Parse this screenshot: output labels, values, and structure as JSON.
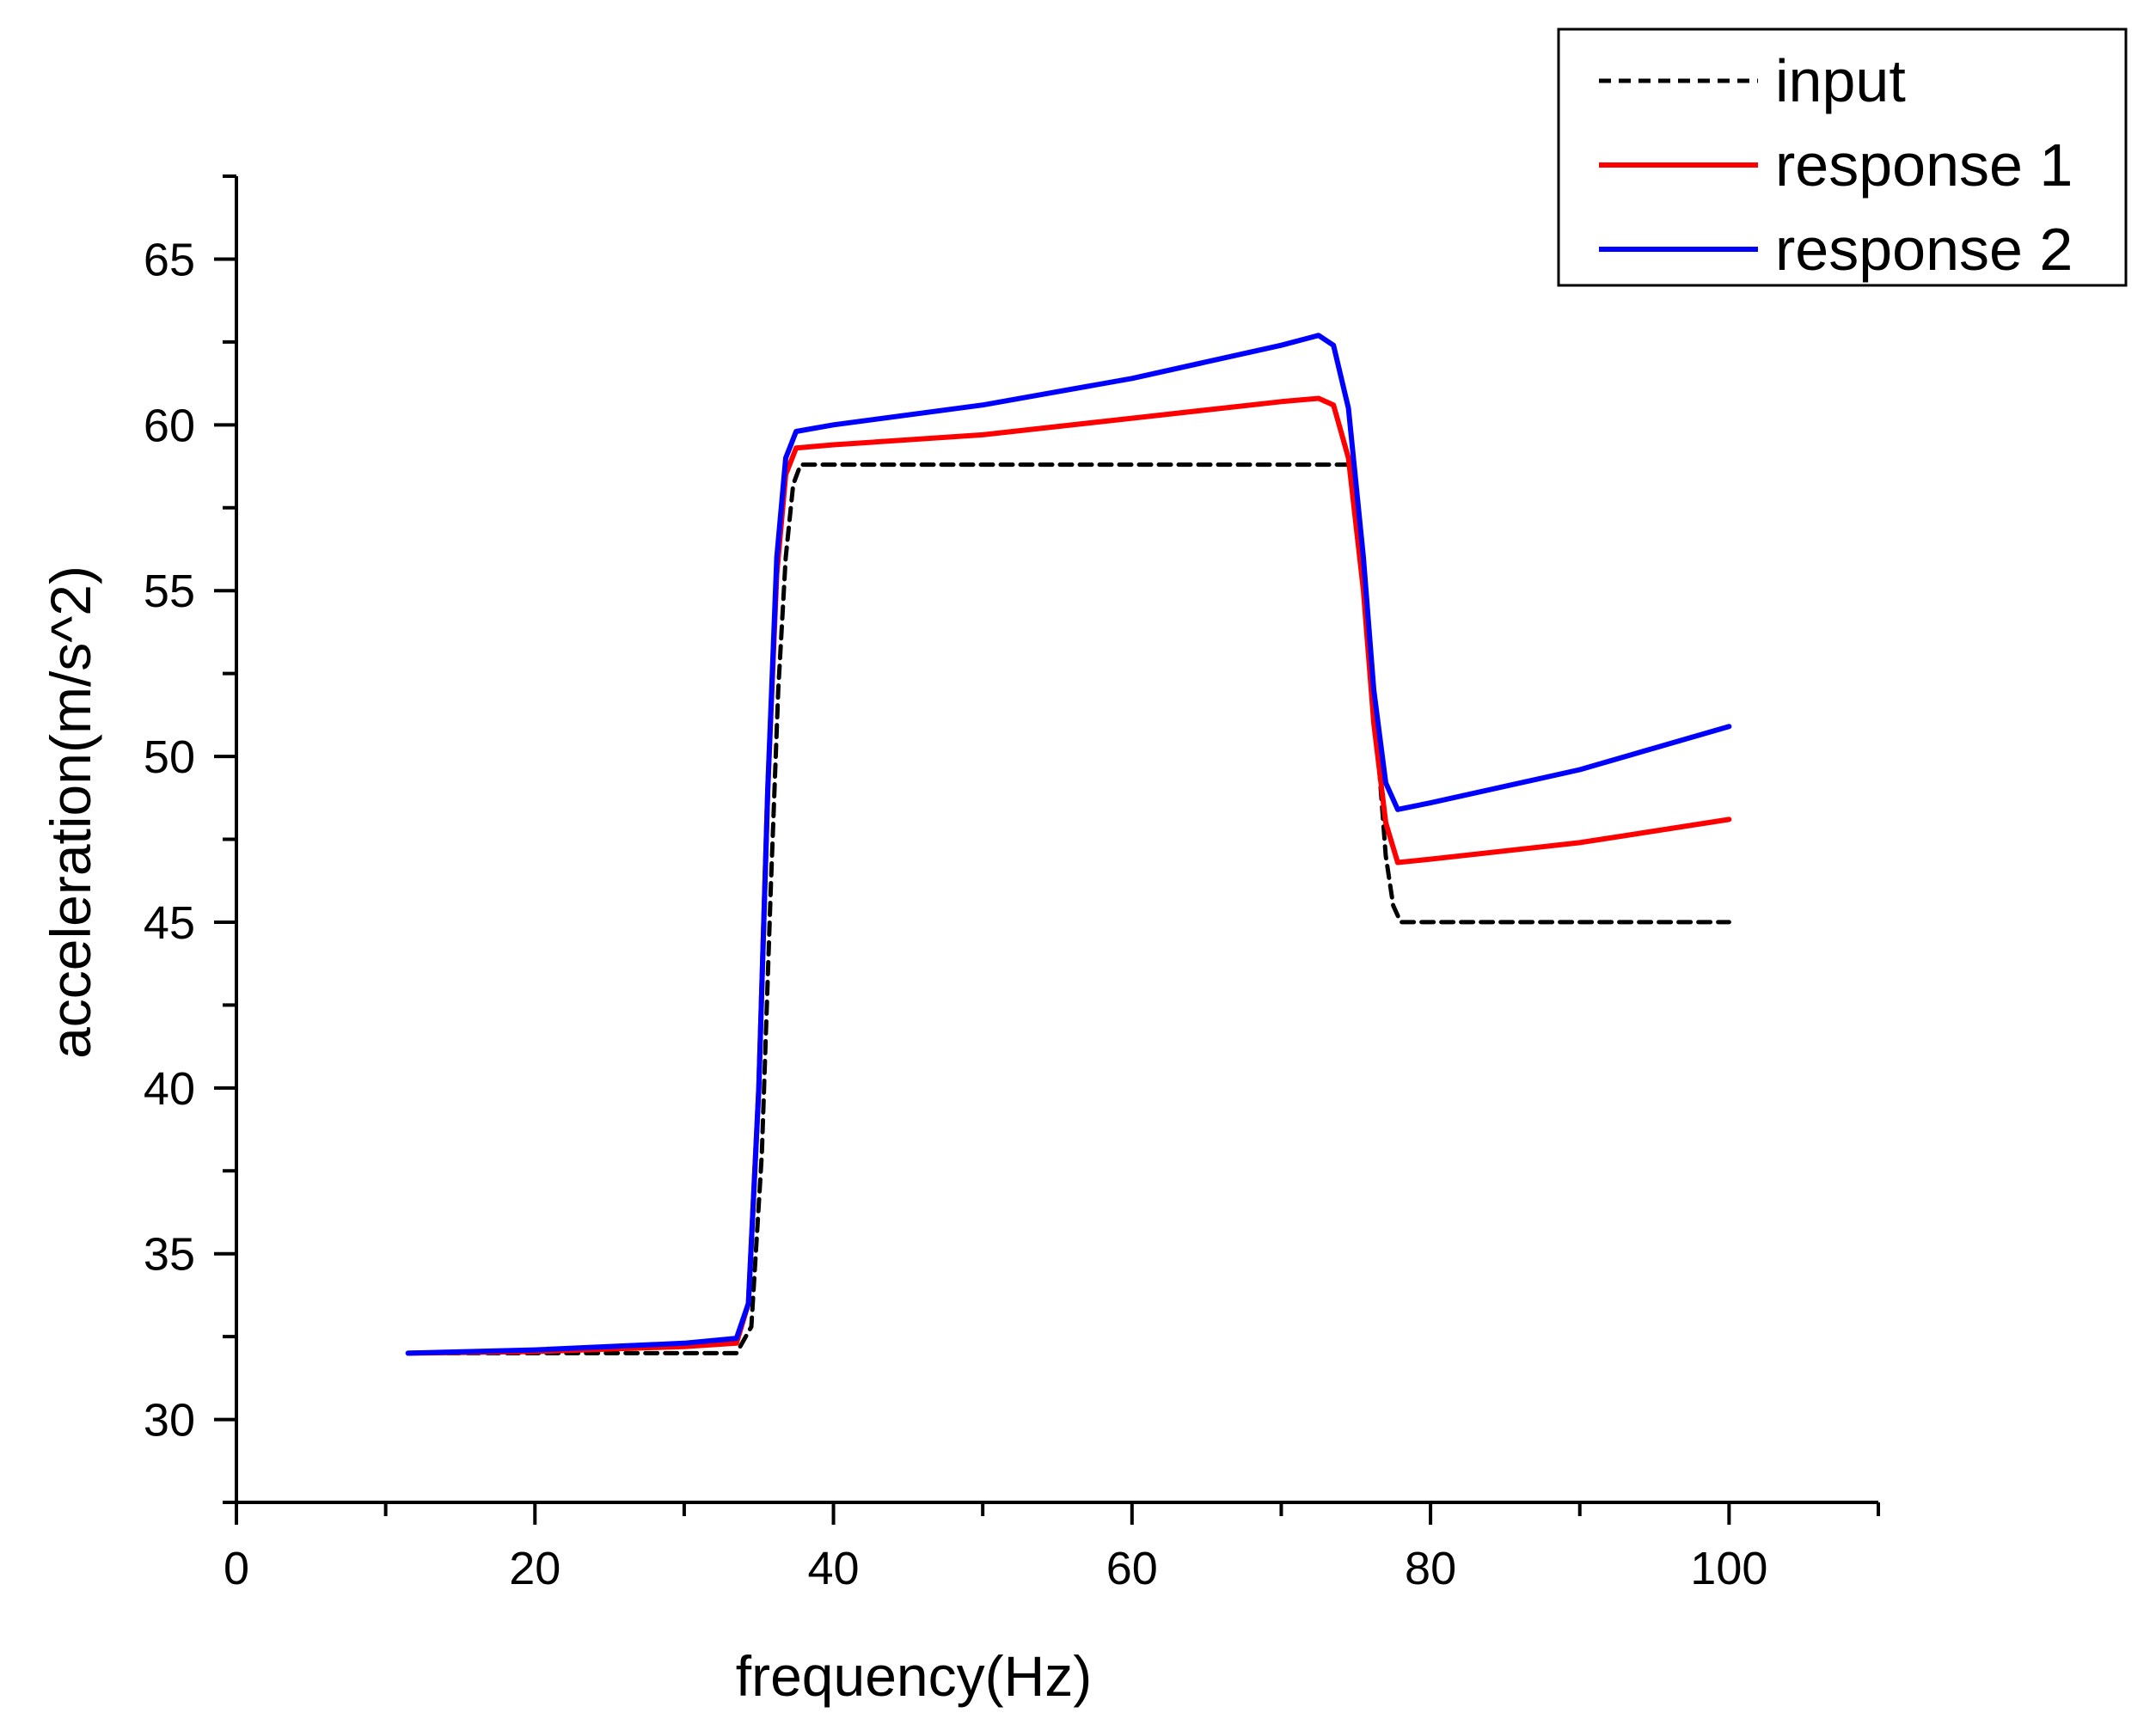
{
  "chart_data": {
    "type": "line",
    "title": "",
    "xlabel": "frequency(Hz)",
    "ylabel": "acceleration(m/s^2)",
    "xlim": [
      0,
      110
    ],
    "ylim": [
      27.5,
      67.5
    ],
    "xticks": [
      0,
      20,
      40,
      60,
      80,
      100
    ],
    "yticks": [
      30,
      35,
      40,
      45,
      50,
      55,
      60,
      65
    ],
    "legend_position": "top-right",
    "series": [
      {
        "name": "input",
        "color": "#000000",
        "style": "dashed",
        "x": [
          11.5,
          33.5,
          34.5,
          35.2,
          35.8,
          36.3,
          36.8,
          37.3,
          37.8,
          40,
          50,
          60,
          70,
          74.5,
          75.5,
          76.0,
          76.5,
          77.0,
          77.5,
          78.0,
          80,
          90,
          100
        ],
        "y": [
          32.0,
          32.0,
          32.8,
          38,
          46,
          52,
          56,
          58.2,
          58.8,
          58.8,
          58.8,
          58.8,
          58.8,
          58.8,
          56,
          53,
          50,
          47,
          45.5,
          45.0,
          45.0,
          45.0,
          45.0
        ]
      },
      {
        "name": "response 1",
        "color": "#ff0000",
        "style": "solid",
        "x": [
          11.5,
          20,
          30,
          33.5,
          34.3,
          35.0,
          35.6,
          36.2,
          36.8,
          37.5,
          40,
          50,
          60,
          70,
          72.5,
          73.5,
          74.5,
          75.5,
          76.2,
          77.0,
          77.8,
          80,
          90,
          100
        ],
        "y": [
          32.0,
          32.05,
          32.2,
          32.3,
          33.5,
          40,
          49,
          55.5,
          58.5,
          59.3,
          59.4,
          59.7,
          60.2,
          60.7,
          60.8,
          60.6,
          59,
          55,
          51,
          48,
          46.8,
          46.9,
          47.4,
          48.1
        ]
      },
      {
        "name": "response 2",
        "color": "#0000ff",
        "style": "solid",
        "x": [
          11.5,
          20,
          30,
          33.5,
          34.3,
          35.0,
          35.6,
          36.2,
          36.8,
          37.5,
          40,
          50,
          60,
          70,
          72.5,
          73.5,
          74.5,
          75.5,
          76.2,
          77.0,
          77.8,
          80,
          90,
          100
        ],
        "y": [
          32.0,
          32.1,
          32.3,
          32.45,
          33.5,
          40,
          49,
          56,
          59,
          59.8,
          60.0,
          60.6,
          61.4,
          62.4,
          62.7,
          62.4,
          60.5,
          56,
          52,
          49.2,
          48.4,
          48.6,
          49.6,
          50.9
        ]
      }
    ]
  }
}
